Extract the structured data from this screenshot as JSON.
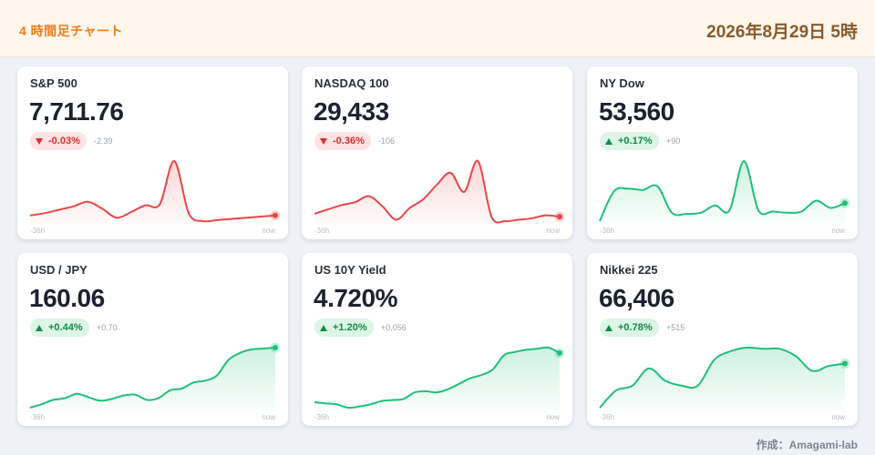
{
  "header": {
    "title": "4 時間足チャート",
    "datetime": "2026年8月29日 5時"
  },
  "footer": {
    "credit": "作成：Amagami-lab"
  },
  "colors": {
    "up": "#1fbf7a",
    "down": "#e84747",
    "accent": "#ee7d1a"
  },
  "cards": [
    {
      "name": "S&P 500",
      "price": "7,711.76",
      "change_pct": "-0.03%",
      "change_abs": "-2.39",
      "direction": "down",
      "axis_start": "-36h",
      "axis_end": "now",
      "series": [
        10,
        12,
        15,
        18,
        22,
        16,
        8,
        13,
        19,
        20,
        58,
        12,
        5,
        6,
        7,
        8,
        9,
        10
      ]
    },
    {
      "name": "NASDAQ 100",
      "price": "29,433",
      "change_pct": "-0.36%",
      "change_abs": "-106",
      "direction": "down",
      "axis_start": "-36h",
      "axis_end": "now",
      "series": [
        10,
        13,
        16,
        18,
        22,
        15,
        6,
        14,
        20,
        30,
        38,
        25,
        46,
        8,
        5,
        6,
        7,
        9,
        8
      ]
    },
    {
      "name": "NY Dow",
      "price": "53,560",
      "change_pct": "+0.17%",
      "change_abs": "+90",
      "direction": "up",
      "axis_start": "-36h",
      "axis_end": "now",
      "series": [
        5,
        30,
        32,
        31,
        34,
        12,
        11,
        12,
        18,
        14,
        55,
        14,
        13,
        12,
        13,
        22,
        16,
        20
      ]
    },
    {
      "name": "USD / JPY",
      "price": "160.06",
      "change_pct": "+0.44%",
      "change_abs": "+0.70",
      "direction": "up",
      "axis_start": "-36h",
      "axis_end": "now",
      "series": [
        5,
        9,
        14,
        16,
        21,
        17,
        13,
        15,
        19,
        20,
        14,
        16,
        25,
        27,
        34,
        36,
        42,
        60,
        68,
        72,
        73,
        74
      ]
    },
    {
      "name": "US 10Y Yield",
      "price": "4.720%",
      "change_pct": "+1.20%",
      "change_abs": "+0.056",
      "direction": "up",
      "axis_start": "-36h",
      "axis_end": "now",
      "series": [
        12,
        11,
        10,
        7,
        8,
        10,
        13,
        14,
        15,
        21,
        22,
        21,
        24,
        29,
        34,
        37,
        42,
        55,
        58,
        60,
        61,
        62,
        57
      ]
    },
    {
      "name": "Nikkei 225",
      "price": "66,406",
      "change_pct": "+0.78%",
      "change_abs": "+515",
      "direction": "up",
      "axis_start": "-36h",
      "axis_end": "now",
      "series": [
        6,
        20,
        24,
        38,
        28,
        24,
        24,
        45,
        52,
        55,
        54,
        54,
        48,
        36,
        40,
        42
      ]
    }
  ]
}
